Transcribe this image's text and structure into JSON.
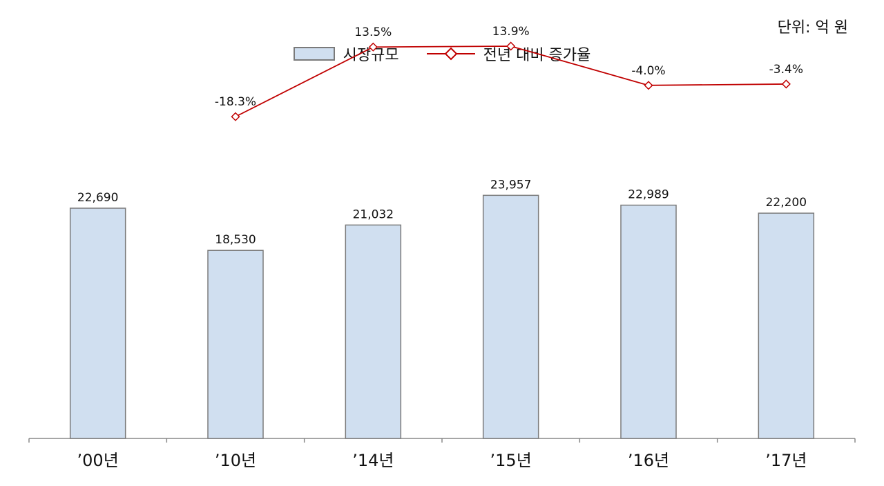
{
  "unit_label": "단위: 억 원",
  "legend": {
    "bar_label": "시장규모",
    "line_label": "전년 대비 증가율"
  },
  "colors": {
    "bar_fill": "#d0dff0",
    "bar_stroke": "#7a7a7a",
    "line": "#c00000",
    "axis": "#888888"
  },
  "chart_data": {
    "type": "bar",
    "categories": [
      "’00년",
      "’10년",
      "’14년",
      "’15년",
      "’16년",
      "’17년"
    ],
    "series": [
      {
        "name": "시장규모",
        "type": "bar",
        "values": [
          22690,
          18530,
          21032,
          23957,
          22989,
          22200
        ],
        "labels": [
          "22,690",
          "18,530",
          "21,032",
          "23,957",
          "22,989",
          "22,200"
        ]
      },
      {
        "name": "전년 대비 증가율",
        "type": "line",
        "values": [
          null,
          -18.3,
          13.5,
          13.9,
          -4.0,
          -3.4
        ],
        "labels": [
          "",
          "-18.3%",
          "13.5%",
          "13.9%",
          "-4.0%",
          "-3.4%"
        ]
      }
    ],
    "ylim": [
      0,
      40000
    ],
    "y2lim": [
      -70,
      25
    ],
    "grid": false,
    "legend_position": "top-center",
    "title": "",
    "xlabel": "",
    "ylabel": ""
  }
}
